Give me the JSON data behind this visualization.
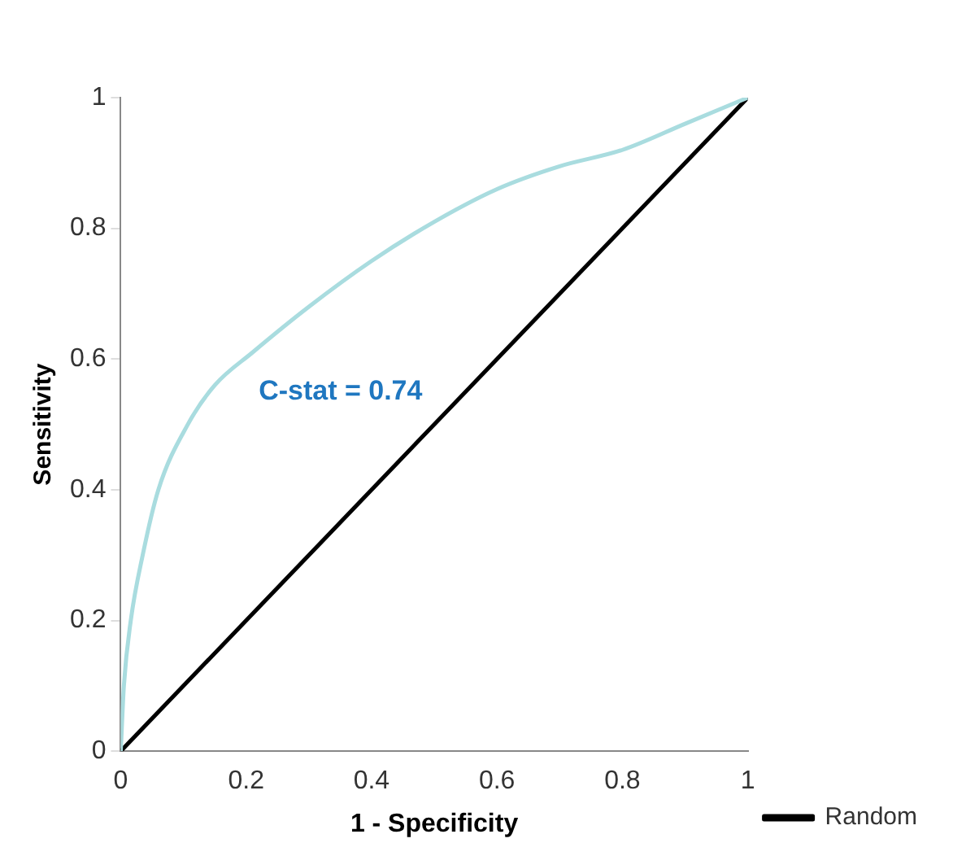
{
  "chart_data": {
    "type": "line",
    "xlabel": "1 - Specificity",
    "ylabel": "Sensitivity",
    "annotations": [
      "C-stat = 0.74"
    ],
    "xlim": [
      0,
      1
    ],
    "ylim": [
      0,
      1
    ],
    "xticks": [
      0,
      0.2,
      0.4,
      0.6,
      0.8,
      1
    ],
    "yticks": [
      0,
      0.2,
      0.4,
      0.6,
      0.8,
      1
    ],
    "grid": false,
    "legend": "bottom right",
    "marker": "none",
    "line_style": "solid",
    "series": [
      {
        "color": "#a9dcdf",
        "x": [
          0,
          0.005,
          0.016,
          0.035,
          0.06,
          0.107,
          0.15,
          0.21,
          0.3,
          0.4,
          0.5,
          0.6,
          0.7,
          0.8,
          0.9,
          1
        ],
        "values": [
          0,
          0.1,
          0.2,
          0.3,
          0.4,
          0.5,
          0.56,
          0.61,
          0.68,
          0.75,
          0.81,
          0.86,
          0.895,
          0.92,
          0.96,
          1
        ]
      },
      {
        "name": "Random",
        "color": "#000000",
        "x": [
          0,
          1
        ],
        "values": [
          0,
          1
        ]
      }
    ]
  }
}
